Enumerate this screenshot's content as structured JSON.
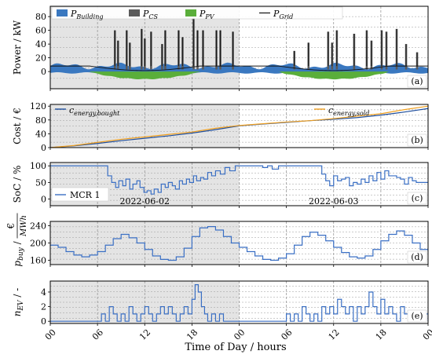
{
  "figure": {
    "xlabel": "Time of Day / hours",
    "xticks": [
      "00",
      "06",
      "12",
      "18",
      "00",
      "06",
      "12",
      "18",
      "00"
    ],
    "date_labels": [
      "2022-06-02",
      "2022-06-03"
    ]
  },
  "chart_data": [
    {
      "id": "power",
      "type": "area",
      "panel_tag": "(a)",
      "ylabel": "Power / kW",
      "ylim": [
        -25,
        95
      ],
      "yticks": [
        "80",
        "60",
        "40",
        "20",
        "0"
      ],
      "grid": true,
      "legend_placement": "top",
      "legend": [
        {
          "name": "P_Building",
          "label_main": "P",
          "label_sub": "Building",
          "color": "#3a78c0",
          "style": "patch"
        },
        {
          "name": "P_CS",
          "label_main": "P",
          "label_sub": "CS",
          "color": "#5a5a5a",
          "style": "patch"
        },
        {
          "name": "P_PV",
          "label_main": "P",
          "label_sub": "PV",
          "color": "#5aae3a",
          "style": "patch"
        },
        {
          "name": "P_Grid",
          "label_main": "P",
          "label_sub": "Grid",
          "color": "#111111",
          "style": "line"
        }
      ],
      "building_base_kw": 8,
      "pv_peak_kw": -11,
      "pv_windows_h": [
        [
          5,
          19
        ],
        [
          29,
          43
        ]
      ],
      "cs_spikes": [
        {
          "t": 8.2,
          "kw": 60
        },
        {
          "t": 8.6,
          "kw": 45
        },
        {
          "t": 9.7,
          "kw": 60
        },
        {
          "t": 10.1,
          "kw": 42
        },
        {
          "t": 11.6,
          "kw": 62
        },
        {
          "t": 12.0,
          "kw": 48
        },
        {
          "t": 12.8,
          "kw": 58
        },
        {
          "t": 14.2,
          "kw": 40
        },
        {
          "t": 14.6,
          "kw": 60
        },
        {
          "t": 16.3,
          "kw": 60
        },
        {
          "t": 16.8,
          "kw": 50
        },
        {
          "t": 18.2,
          "kw": 78
        },
        {
          "t": 18.7,
          "kw": 60
        },
        {
          "t": 19.4,
          "kw": 60
        },
        {
          "t": 21.1,
          "kw": 60
        },
        {
          "t": 21.6,
          "kw": 60
        },
        {
          "t": 23.2,
          "kw": 58
        },
        {
          "t": 31.0,
          "kw": 30
        },
        {
          "t": 32.8,
          "kw": 42
        },
        {
          "t": 35.3,
          "kw": 58
        },
        {
          "t": 35.8,
          "kw": 42
        },
        {
          "t": 36.4,
          "kw": 60
        },
        {
          "t": 38.6,
          "kw": 55
        },
        {
          "t": 40.2,
          "kw": 60
        },
        {
          "t": 40.8,
          "kw": 45
        },
        {
          "t": 42.1,
          "kw": 60
        },
        {
          "t": 42.7,
          "kw": 58
        },
        {
          "t": 44.0,
          "kw": 62
        },
        {
          "t": 45.2,
          "kw": 40
        },
        {
          "t": 46.6,
          "kw": 28
        }
      ]
    },
    {
      "id": "cost",
      "type": "line",
      "panel_tag": "(b)",
      "ylabel": "Cost / €",
      "ylim": [
        0,
        125
      ],
      "yticks": [
        "120",
        "80",
        "40",
        "0"
      ],
      "grid": true,
      "legend_placement": "top",
      "series": [
        {
          "name": "c_energy,bought",
          "label_main": "c",
          "label_sub": "energy,bought",
          "color": "#1f4e9c",
          "x": [
            0,
            3,
            6,
            9,
            12,
            15,
            18,
            21,
            24,
            27,
            30,
            33,
            36,
            39,
            42,
            45,
            48
          ],
          "values": [
            0,
            5,
            12,
            20,
            27,
            34,
            42,
            52,
            63,
            68,
            73,
            78,
            82,
            87,
            94,
            103,
            113
          ]
        },
        {
          "name": "c_energy,sold",
          "label_main": "c",
          "label_sub": "energy,sold",
          "color": "#f0a020",
          "x": [
            0,
            3,
            6,
            9,
            12,
            15,
            18,
            21,
            24,
            27,
            30,
            33,
            36,
            39,
            42,
            45,
            48
          ],
          "values": [
            0,
            6,
            15,
            24,
            31,
            38,
            45,
            56,
            64,
            69,
            74,
            78,
            84,
            91,
            98,
            110,
            120
          ]
        }
      ]
    },
    {
      "id": "soc",
      "type": "line",
      "panel_tag": "(c)",
      "ylabel": "SoC / %",
      "ylim": [
        -20,
        110
      ],
      "yticks": [
        "100",
        "50",
        "0"
      ],
      "grid": true,
      "legend_placement": "bottom-left",
      "series": [
        {
          "name": "MCR 1",
          "color": "#3a6fc4",
          "x": [
            0,
            6.8,
            7.3,
            7.8,
            8.3,
            8.7,
            9.2,
            9.6,
            10.1,
            10.5,
            11.0,
            11.4,
            11.9,
            12.3,
            12.8,
            13.2,
            13.7,
            14.1,
            14.6,
            15.0,
            15.5,
            15.9,
            16.4,
            16.8,
            17.3,
            17.7,
            18.2,
            18.6,
            19.1,
            19.5,
            20.0,
            20.5,
            21.0,
            21.6,
            22.2,
            22.8,
            23.5,
            24.5,
            25.5,
            26.5,
            27.0,
            27.6,
            28.2,
            29.0,
            30.0,
            31.0,
            32.0,
            33.0,
            34.0,
            34.5,
            35.0,
            35.5,
            36.0,
            36.5,
            37.0,
            37.5,
            38.0,
            38.5,
            39.0,
            39.5,
            40.0,
            40.5,
            41.0,
            41.5,
            42.0,
            42.5,
            43.0,
            43.5,
            44.0,
            44.5,
            45.0,
            45.5,
            46.0,
            46.5,
            47.0,
            48.0
          ],
          "values": [
            100,
            100,
            70,
            50,
            35,
            55,
            40,
            60,
            30,
            45,
            55,
            35,
            20,
            25,
            15,
            30,
            20,
            45,
            35,
            50,
            40,
            30,
            55,
            45,
            60,
            50,
            70,
            55,
            65,
            60,
            80,
            70,
            85,
            75,
            95,
            85,
            100,
            100,
            100,
            100,
            95,
            100,
            90,
            100,
            100,
            100,
            100,
            100,
            100,
            75,
            55,
            40,
            70,
            55,
            60,
            65,
            40,
            50,
            45,
            60,
            50,
            70,
            55,
            80,
            60,
            85,
            70,
            70,
            65,
            60,
            45,
            65,
            55,
            50,
            50,
            50
          ]
        }
      ]
    },
    {
      "id": "price",
      "type": "line",
      "panel_tag": "(d)",
      "ylabel_main": "p",
      "ylabel_sub": "buy",
      "ylabel_unit_num": "€",
      "ylabel_unit_den": "MWh",
      "ylim": [
        150,
        250
      ],
      "yticks": [
        "240",
        "200",
        "160"
      ],
      "grid": true,
      "series": [
        {
          "name": "p_buy",
          "color": "#3a6fc4",
          "x": [
            0,
            1,
            2,
            3,
            4,
            5,
            6,
            7,
            8,
            9,
            10,
            11,
            12,
            13,
            14,
            15,
            16,
            17,
            18,
            19,
            20,
            21,
            22,
            23,
            24,
            25,
            26,
            27,
            28,
            29,
            30,
            31,
            32,
            33,
            34,
            35,
            36,
            37,
            38,
            39,
            40,
            41,
            42,
            43,
            44,
            45,
            46,
            47,
            48
          ],
          "values": [
            195,
            190,
            180,
            172,
            168,
            172,
            180,
            195,
            210,
            220,
            212,
            200,
            185,
            170,
            162,
            160,
            168,
            188,
            215,
            235,
            238,
            230,
            215,
            200,
            190,
            180,
            170,
            162,
            160,
            165,
            175,
            195,
            215,
            225,
            218,
            205,
            190,
            178,
            168,
            165,
            170,
            185,
            205,
            220,
            228,
            218,
            200,
            185,
            180
          ]
        }
      ]
    },
    {
      "id": "nev",
      "type": "line",
      "panel_tag": "(e)",
      "ylabel_main": "n",
      "ylabel_sub": "EV",
      "ylabel_unit": " / -",
      "ylim": [
        -0.3,
        5.5
      ],
      "yticks": [
        "4",
        "2",
        "0"
      ],
      "grid": true,
      "series": [
        {
          "name": "n_EV",
          "color": "#3a6fc4",
          "x": [
            0,
            6.5,
            7.0,
            7.5,
            8.0,
            8.5,
            9.0,
            9.5,
            10.0,
            10.5,
            11.0,
            11.5,
            12.0,
            12.5,
            13.0,
            13.5,
            14.0,
            14.5,
            15.0,
            15.5,
            16.0,
            16.5,
            17.0,
            17.5,
            18.0,
            18.4,
            18.8,
            19.2,
            19.6,
            20.0,
            20.5,
            21.0,
            21.5,
            22.0,
            23.0,
            30.0,
            30.5,
            31.0,
            31.5,
            32.0,
            32.5,
            33.0,
            33.5,
            34.0,
            34.5,
            35.0,
            35.5,
            36.0,
            36.5,
            37.0,
            37.5,
            38.0,
            38.5,
            39.0,
            39.5,
            40.0,
            40.5,
            41.0,
            41.5,
            42.0,
            42.5,
            43.0,
            43.5,
            44.0,
            44.5,
            45.0,
            45.5,
            46.0,
            48.0
          ],
          "values": [
            0,
            1,
            0,
            2,
            1,
            0,
            1,
            0,
            2,
            1,
            0,
            1,
            2,
            1,
            0,
            1,
            2,
            1,
            2,
            1,
            0,
            1,
            2,
            1,
            3,
            5,
            4,
            2,
            1,
            0,
            1,
            0,
            1,
            0,
            0,
            1,
            0,
            1,
            0,
            2,
            1,
            0,
            1,
            0,
            2,
            1,
            2,
            1,
            3,
            2,
            1,
            2,
            0,
            2,
            1,
            2,
            4,
            2,
            1,
            3,
            1,
            2,
            1,
            0,
            2,
            1,
            0,
            1,
            0
          ]
        }
      ]
    }
  ]
}
